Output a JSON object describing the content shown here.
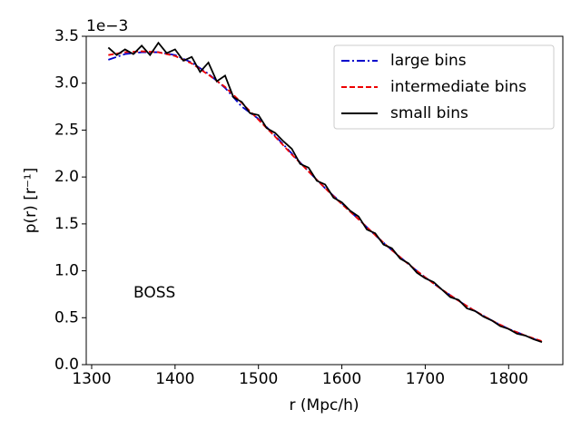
{
  "chart_data": {
    "type": "line",
    "x_label": "r (Mpc/h)",
    "y_label": "p(r) [r⁻¹]",
    "y_offset_label": "1e−3",
    "annotation": "BOSS",
    "xlim": [
      1293.5,
      1865
    ],
    "ylim": [
      0,
      3.5
    ],
    "xticks": [
      1300,
      1400,
      1500,
      1600,
      1700,
      1800
    ],
    "yticks": [
      {
        "value": 0,
        "label": "0.0"
      },
      {
        "value": 0.5,
        "label": "0.5"
      },
      {
        "value": 1,
        "label": "1.0"
      },
      {
        "value": 1.5,
        "label": "1.5"
      },
      {
        "value": 2,
        "label": "2.0"
      },
      {
        "value": 2.5,
        "label": "2.5"
      },
      {
        "value": 3,
        "label": "3.0"
      },
      {
        "value": 3.5,
        "label": "3.5"
      }
    ],
    "grid": false,
    "legend": "upper right",
    "series": [
      {
        "name": "large bins",
        "color": "#0000cc",
        "linestyle": "dashdot",
        "x": [
          1320,
          1340,
          1360,
          1380,
          1400,
          1420,
          1440,
          1460,
          1480,
          1500,
          1520,
          1540,
          1560,
          1580,
          1600,
          1620,
          1640,
          1660,
          1680,
          1700,
          1720,
          1740,
          1760,
          1780,
          1800,
          1820,
          1840
        ],
        "values": [
          3.25,
          3.31,
          3.33,
          3.33,
          3.3,
          3.22,
          3.1,
          2.95,
          2.75,
          2.62,
          2.44,
          2.25,
          2.06,
          1.88,
          1.72,
          1.55,
          1.38,
          1.22,
          1.07,
          0.93,
          0.8,
          0.68,
          0.57,
          0.47,
          0.38,
          0.31,
          0.24
        ]
      },
      {
        "name": "intermediate bins",
        "color": "#ee0000",
        "linestyle": "dashed",
        "x": [
          1320,
          1340,
          1360,
          1380,
          1400,
          1420,
          1440,
          1460,
          1480,
          1500,
          1520,
          1540,
          1560,
          1580,
          1600,
          1620,
          1640,
          1660,
          1680,
          1700,
          1720,
          1740,
          1760,
          1780,
          1800,
          1820,
          1840
        ],
        "values": [
          3.3,
          3.33,
          3.34,
          3.33,
          3.29,
          3.21,
          3.09,
          2.96,
          2.79,
          2.61,
          2.43,
          2.24,
          2.06,
          1.88,
          1.71,
          1.55,
          1.38,
          1.22,
          1.07,
          0.93,
          0.8,
          0.68,
          0.57,
          0.47,
          0.38,
          0.31,
          0.25
        ]
      },
      {
        "name": "small bins",
        "color": "#000000",
        "linestyle": "solid",
        "x": [
          1320,
          1330,
          1340,
          1350,
          1360,
          1370,
          1380,
          1390,
          1400,
          1410,
          1420,
          1430,
          1440,
          1450,
          1460,
          1470,
          1480,
          1490,
          1500,
          1510,
          1520,
          1530,
          1540,
          1550,
          1560,
          1570,
          1580,
          1590,
          1600,
          1610,
          1620,
          1630,
          1640,
          1650,
          1660,
          1670,
          1680,
          1690,
          1700,
          1710,
          1720,
          1730,
          1740,
          1750,
          1760,
          1770,
          1780,
          1790,
          1800,
          1810,
          1820,
          1830,
          1840
        ],
        "values": [
          3.38,
          3.3,
          3.36,
          3.31,
          3.4,
          3.3,
          3.43,
          3.32,
          3.36,
          3.24,
          3.28,
          3.12,
          3.22,
          3.02,
          3.08,
          2.85,
          2.8,
          2.68,
          2.66,
          2.52,
          2.47,
          2.38,
          2.3,
          2.14,
          2.1,
          1.96,
          1.92,
          1.78,
          1.73,
          1.64,
          1.58,
          1.44,
          1.4,
          1.28,
          1.24,
          1.13,
          1.08,
          0.98,
          0.92,
          0.88,
          0.8,
          0.72,
          0.69,
          0.6,
          0.57,
          0.51,
          0.47,
          0.41,
          0.38,
          0.33,
          0.31,
          0.27,
          0.24
        ]
      }
    ]
  }
}
